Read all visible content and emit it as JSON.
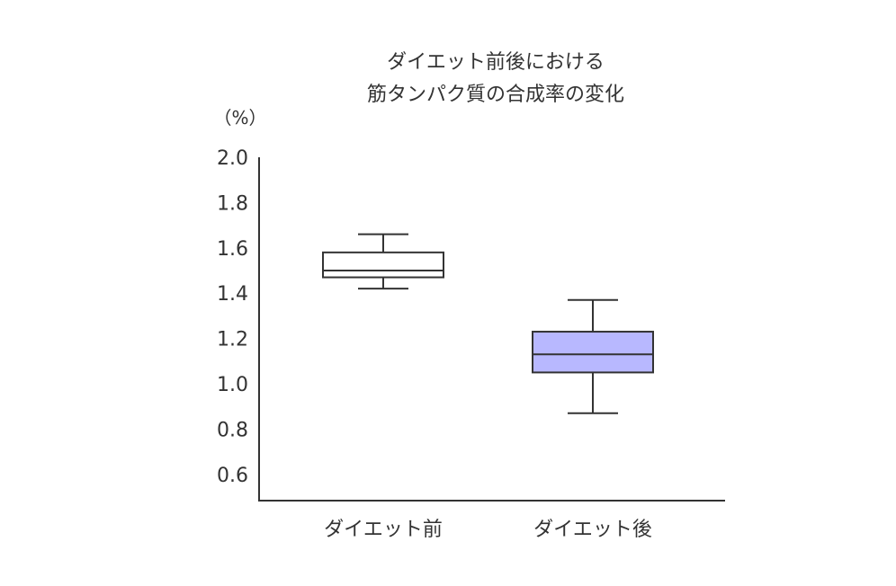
{
  "chart_data": {
    "type": "box",
    "title_lines": [
      "ダイエット前後における",
      "筋タンパク質の合成率の変化"
    ],
    "ylabel": "（%）",
    "xlabel": "",
    "yticks": [
      "2.0",
      "1.8",
      "1.6",
      "1.4",
      "1.2",
      "1.0",
      "0.8",
      "0.6"
    ],
    "ytick_values": [
      2.0,
      1.8,
      1.6,
      1.4,
      1.2,
      1.0,
      0.8,
      0.6
    ],
    "ylim": [
      0.5,
      2.0
    ],
    "grid": false,
    "categories": [
      "ダイエット前",
      "ダイエット後"
    ],
    "boxes": [
      {
        "category": "ダイエット前",
        "whisker_low": 1.42,
        "q1": 1.47,
        "median": 1.5,
        "q3": 1.58,
        "whisker_high": 1.66,
        "fill": "#ffffff"
      },
      {
        "category": "ダイエット後",
        "whisker_low": 0.87,
        "q1": 1.05,
        "median": 1.13,
        "q3": 1.23,
        "whisker_high": 1.37,
        "fill": "#b8b8ff"
      }
    ],
    "colors": {
      "stroke": "#333333",
      "text": "#333333"
    }
  }
}
